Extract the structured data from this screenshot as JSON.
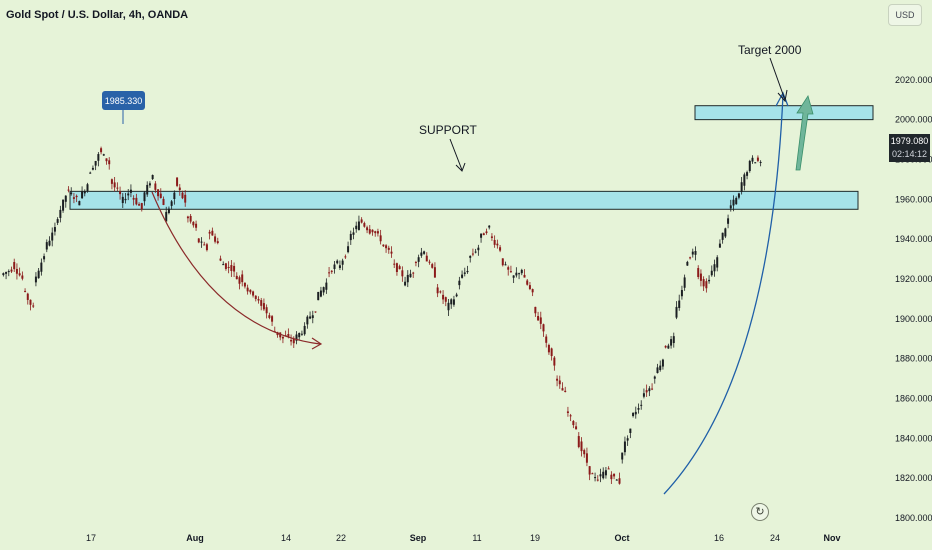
{
  "header": {
    "symbol_title": "Gold Spot / U.S. Dollar, 4h, OANDA",
    "currency": "USD"
  },
  "price_tag": {
    "price": "1979.080",
    "timer": "02:14:12",
    "value": 1979.08
  },
  "high_marker": {
    "label": "1985.330",
    "value": 1985.33,
    "x_position_label": "between 17 and Aug"
  },
  "annotations": {
    "support_label": "SUPPORT",
    "target_label": "Target 2000"
  },
  "icons": {
    "replay": "replay-icon"
  },
  "colors": {
    "background": "#e6f3d8",
    "zone_fill": "#a6e3e9",
    "zone_border": "#1f2a2a",
    "down_arrow": "#8b2a2a",
    "up_arrow": "#1f5fa8",
    "target_arrow": "#6fb59a",
    "candle_up": "#1b1f22",
    "candle_down": "#8b1a1a"
  },
  "chart_data": {
    "type": "candlestick",
    "title": "Gold Spot / U.S. Dollar, 4h, OANDA",
    "y_axis": {
      "ticks": [
        1800,
        1820,
        1840,
        1860,
        1880,
        1900,
        1920,
        1940,
        1960,
        1980,
        2000,
        2020
      ],
      "tick_labels": [
        "1800.000",
        "1820.000",
        "1840.000",
        "1860.000",
        "1880.000",
        "1900.000",
        "1920.000",
        "1940.000",
        "1960.000",
        "1980.000",
        "2000.000",
        "2020.000"
      ],
      "range": [
        1795,
        2045
      ]
    },
    "x_axis": {
      "labels": [
        {
          "label": "17",
          "bold": false
        },
        {
          "label": "Aug",
          "bold": true
        },
        {
          "label": "14",
          "bold": false
        },
        {
          "label": "22",
          "bold": false
        },
        {
          "label": "Sep",
          "bold": true
        },
        {
          "label": "11",
          "bold": false
        },
        {
          "label": "19",
          "bold": false
        },
        {
          "label": "Oct",
          "bold": true
        },
        {
          "label": "16",
          "bold": false
        },
        {
          "label": "24",
          "bold": false
        },
        {
          "label": "Nov",
          "bold": true
        }
      ]
    },
    "zones": [
      {
        "name": "support-zone",
        "low": 1955,
        "high": 1964
      },
      {
        "name": "target-zone",
        "low": 2000,
        "high": 2007
      }
    ],
    "price_path": [
      [
        1922,
        1925
      ],
      [
        1928,
        1920
      ],
      [
        1915,
        1905
      ],
      [
        1918,
        1932
      ],
      [
        1935,
        1945
      ],
      [
        1948,
        1962
      ],
      [
        1965,
        1960
      ],
      [
        1958,
        1968
      ],
      [
        1972,
        1982
      ],
      [
        1985,
        1978
      ],
      [
        1970,
        1962
      ],
      [
        1958,
        1965
      ],
      [
        1962,
        1955
      ],
      [
        1960,
        1972
      ],
      [
        1968,
        1958
      ],
      [
        1950,
        1962
      ],
      [
        1970,
        1958
      ],
      [
        1952,
        1945
      ],
      [
        1940,
        1935
      ],
      [
        1945,
        1938
      ],
      [
        1930,
        1925
      ],
      [
        1928,
        1918
      ],
      [
        1922,
        1912
      ],
      [
        1915,
        1906
      ],
      [
        1908,
        1898
      ],
      [
        1895,
        1890
      ],
      [
        1892,
        1888
      ],
      [
        1890,
        1895
      ],
      [
        1898,
        1905
      ],
      [
        1910,
        1918
      ],
      [
        1922,
        1928
      ],
      [
        1925,
        1935
      ],
      [
        1940,
        1948
      ],
      [
        1950,
        1944
      ],
      [
        1946,
        1940
      ],
      [
        1938,
        1932
      ],
      [
        1928,
        1922
      ],
      [
        1918,
        1924
      ],
      [
        1928,
        1935
      ],
      [
        1932,
        1922
      ],
      [
        1916,
        1908
      ],
      [
        1905,
        1912
      ],
      [
        1918,
        1925
      ],
      [
        1930,
        1936
      ],
      [
        1940,
        1946
      ],
      [
        1942,
        1935
      ],
      [
        1930,
        1922
      ],
      [
        1920,
        1925
      ],
      [
        1922,
        1912
      ],
      [
        1905,
        1895
      ],
      [
        1890,
        1878
      ],
      [
        1870,
        1862
      ],
      [
        1855,
        1845
      ],
      [
        1840,
        1828
      ],
      [
        1825,
        1818
      ],
      [
        1820,
        1825
      ],
      [
        1822,
        1818
      ],
      [
        1830,
        1845
      ],
      [
        1850,
        1858
      ],
      [
        1862,
        1866
      ],
      [
        1870,
        1880
      ],
      [
        1885,
        1890
      ],
      [
        1900,
        1920
      ],
      [
        1928,
        1935
      ],
      [
        1925,
        1915
      ],
      [
        1918,
        1930
      ],
      [
        1935,
        1950
      ],
      [
        1955,
        1962
      ],
      [
        1965,
        1978
      ],
      [
        1980,
        1979
      ]
    ]
  }
}
